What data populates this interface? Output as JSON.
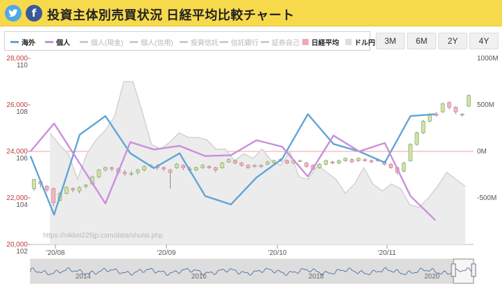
{
  "header": {
    "title": "投資主体別売買状況 日経平均比較チャート",
    "twitter_icon": "twitter-icon",
    "facebook_icon": "facebook-icon"
  },
  "legend": [
    {
      "label": "海外",
      "color": "#5fa5d6",
      "active": true,
      "kind": "line"
    },
    {
      "label": "個人",
      "color": "#c98fdc",
      "active": true,
      "kind": "line"
    },
    {
      "label": "個人(現金)",
      "color": "#cccccc",
      "active": false,
      "kind": "line"
    },
    {
      "label": "個人(信用)",
      "color": "#cccccc",
      "active": false,
      "kind": "line"
    },
    {
      "label": "投資信託",
      "color": "#cccccc",
      "active": false,
      "kind": "line"
    },
    {
      "label": "信託銀行",
      "color": "#cccccc",
      "active": false,
      "kind": "line"
    },
    {
      "label": "証券自己",
      "color": "#cccccc",
      "active": false,
      "kind": "line"
    },
    {
      "label": "日経平均",
      "color": "#f0a8b4",
      "active": true,
      "kind": "box"
    },
    {
      "label": "ドル円",
      "color": "#dddddd",
      "active": true,
      "kind": "box"
    }
  ],
  "range_buttons": [
    "3M",
    "6M",
    "2Y",
    "4Y"
  ],
  "watermark": "https://nikkei225jp.com/data/shutai.php",
  "chart_data": {
    "type": "line",
    "x_ticks": [
      "'20/08",
      "'20/09",
      "'20/10",
      "'20/11"
    ],
    "y_left_nikkei": {
      "ticks": [
        "28,000",
        "26,000",
        "24,000",
        "22,000",
        "20,000"
      ],
      "range": [
        20000,
        28000
      ]
    },
    "y_left_usdjpy": {
      "ticks": [
        "110",
        "108",
        "106",
        "104",
        "102"
      ],
      "range": [
        102,
        110
      ]
    },
    "y_right_flow": {
      "ticks": [
        "1000M",
        "500M",
        "0M",
        "-500M"
      ],
      "range": [
        -1000,
        1000
      ]
    },
    "series": [
      {
        "name": "海外",
        "color": "#5fa5d6",
        "values": [
          -50,
          -680,
          180,
          380,
          -20,
          -180,
          -20,
          -480,
          -570,
          -280,
          -80,
          400,
          80,
          0,
          -120,
          380,
          400
        ]
      },
      {
        "name": "個人",
        "color": "#c98fdc",
        "values": [
          0,
          300,
          -130,
          -560,
          100,
          20,
          60,
          -50,
          -40,
          120,
          50,
          -270,
          170,
          0,
          90,
          -480,
          -740
        ]
      }
    ],
    "nikkei_candles": [
      [
        22400,
        22800,
        22300,
        22700
      ],
      [
        22700,
        22600,
        22450,
        22750
      ],
      [
        22500,
        22350,
        22250,
        22550
      ],
      [
        22400,
        21800,
        21650,
        22450
      ],
      [
        21900,
        22200,
        21850,
        22250
      ],
      [
        22200,
        22450,
        22150,
        22500
      ],
      [
        22400,
        22350,
        22250,
        22450
      ],
      [
        22300,
        22450,
        22200,
        22500
      ],
      [
        22500,
        22550,
        22400,
        22600
      ],
      [
        22600,
        22900,
        22550,
        22950
      ],
      [
        22900,
        23200,
        22850,
        23250
      ],
      [
        23200,
        23300,
        23150,
        23350
      ],
      [
        23300,
        23250,
        23150,
        23350
      ],
      [
        23250,
        23100,
        23000,
        23300
      ],
      [
        23100,
        23050,
        22950,
        23200
      ],
      [
        23050,
        23050,
        22950,
        23150
      ],
      [
        23100,
        23200,
        23000,
        23250
      ],
      [
        23200,
        23350,
        23150,
        23400
      ],
      [
        23400,
        23400,
        23300,
        23450
      ],
      [
        23350,
        23300,
        23200,
        23450
      ],
      [
        23300,
        23250,
        23150,
        23350
      ],
      [
        23200,
        23100,
        22400,
        23250
      ],
      [
        23300,
        23450,
        23250,
        23500
      ],
      [
        23400,
        23300,
        23200,
        23450
      ],
      [
        23250,
        23200,
        23100,
        23350
      ],
      [
        23200,
        23300,
        23150,
        23350
      ],
      [
        23300,
        23400,
        23250,
        23450
      ],
      [
        23350,
        23300,
        23250,
        23400
      ],
      [
        23300,
        23200,
        23100,
        23350
      ],
      [
        23300,
        23500,
        23250,
        23550
      ],
      [
        23550,
        23650,
        23500,
        23700
      ],
      [
        23600,
        23500,
        23450,
        23650
      ],
      [
        23500,
        23400,
        23350,
        23550
      ],
      [
        23400,
        23300,
        23250,
        23450
      ],
      [
        23350,
        23400,
        23300,
        23450
      ],
      [
        23400,
        23350,
        23300,
        23450
      ],
      [
        23450,
        23550,
        23400,
        23600
      ],
      [
        23500,
        23600,
        23450,
        23650
      ],
      [
        23600,
        23650,
        23550,
        23700
      ],
      [
        23600,
        23500,
        23450,
        23650
      ],
      [
        23500,
        23600,
        23450,
        23650
      ],
      [
        23600,
        23600,
        23550,
        23650
      ],
      [
        23500,
        23350,
        23300,
        23550
      ],
      [
        23400,
        23250,
        23200,
        23450
      ],
      [
        23300,
        23450,
        23250,
        23500
      ],
      [
        23450,
        23600,
        23400,
        23650
      ],
      [
        23550,
        23500,
        23450,
        23600
      ],
      [
        23500,
        23600,
        23450,
        23650
      ],
      [
        23600,
        23700,
        23550,
        23750
      ],
      [
        23650,
        23550,
        23500,
        23700
      ],
      [
        23600,
        23700,
        23550,
        23750
      ],
      [
        23650,
        23600,
        23550,
        23700
      ],
      [
        23600,
        23550,
        23500,
        23650
      ],
      [
        23650,
        23600,
        23550,
        23700
      ],
      [
        23550,
        23450,
        23400,
        23600
      ],
      [
        23450,
        23300,
        23250,
        23500
      ],
      [
        23300,
        23100,
        23000,
        23350
      ],
      [
        23150,
        23500,
        23100,
        23550
      ],
      [
        23600,
        24300,
        23550,
        24350
      ],
      [
        24300,
        24800,
        24250,
        24850
      ],
      [
        24800,
        25300,
        24750,
        25350
      ],
      [
        25300,
        25600,
        25250,
        25650
      ],
      [
        25600,
        25550,
        25500,
        25700
      ],
      [
        25700,
        26050,
        25650,
        26100
      ],
      [
        26100,
        25900,
        25800,
        26150
      ],
      [
        25900,
        25700,
        25600,
        25950
      ],
      [
        25600,
        25600,
        25500,
        25650
      ],
      [
        25950,
        26400,
        25900,
        26450
      ]
    ],
    "usdjpy_area": [
      106.8,
      106.3,
      105.9,
      104.8,
      105.9,
      106.5,
      106.9,
      107.5,
      109.0,
      109.0,
      107.7,
      106.3,
      106.1,
      106.4,
      106.8,
      106.6,
      106.6,
      106.5,
      106.1,
      106.1,
      105.6,
      105.9,
      105.7,
      106.1,
      105.6,
      105.4,
      106.0,
      104.9,
      104.8,
      105.4,
      105.1,
      104.8,
      104.2,
      104.6,
      105.3,
      104.6,
      104.3,
      104.6,
      104.4,
      103.7,
      103.6,
      104.0,
      104.5,
      105.1,
      104.8,
      104.5
    ],
    "navigator": {
      "labels": [
        "2014",
        "2016",
        "2018",
        "2020"
      ]
    }
  }
}
